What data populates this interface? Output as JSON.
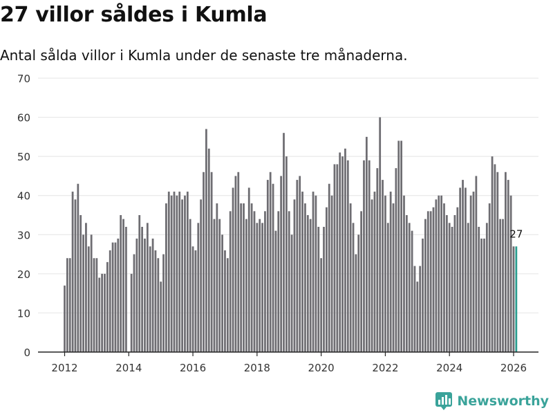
{
  "header": {
    "title": "27 villor såldes i Kumla",
    "subtitle": "Antal sålda villor i Kumla under de senaste tre månaderna."
  },
  "brand": {
    "name": "Newsworthy"
  },
  "colors": {
    "bar": "#6e6d72",
    "highlight": "#2a9d8f",
    "grid": "#e4e4e4",
    "axis": "#222222",
    "brand": "#3aa39a"
  },
  "chart_data": {
    "type": "bar",
    "title": "27 villor såldes i Kumla",
    "subtitle": "Antal sålda villor i Kumla under de senaste tre månaderna.",
    "xlabel": "",
    "ylabel": "",
    "ylim": [
      0,
      70
    ],
    "yticks": [
      0,
      10,
      20,
      30,
      40,
      50,
      60,
      70
    ],
    "xticks": [
      "2012",
      "2014",
      "2016",
      "2018",
      "2020",
      "2022",
      "2024",
      "2026"
    ],
    "start": {
      "year": 2012,
      "month": 1
    },
    "highlight_label": "27",
    "values": [
      17,
      24,
      24,
      41,
      39,
      43,
      35,
      30,
      33,
      27,
      30,
      24,
      24,
      19,
      20,
      20,
      23,
      26,
      28,
      28,
      29,
      35,
      34,
      32,
      0,
      20,
      25,
      29,
      35,
      32,
      29,
      33,
      27,
      29,
      26,
      24,
      18,
      25,
      38,
      41,
      40,
      41,
      40,
      41,
      39,
      40,
      41,
      34,
      27,
      26,
      33,
      39,
      46,
      57,
      52,
      46,
      34,
      38,
      34,
      30,
      26,
      24,
      36,
      42,
      45,
      46,
      38,
      38,
      34,
      42,
      38,
      36,
      33,
      34,
      33,
      36,
      44,
      46,
      43,
      31,
      36,
      45,
      56,
      50,
      36,
      30,
      39,
      44,
      45,
      41,
      38,
      35,
      34,
      41,
      40,
      32,
      24,
      32,
      37,
      43,
      40,
      48,
      48,
      51,
      50,
      52,
      49,
      38,
      33,
      25,
      30,
      36,
      49,
      55,
      49,
      39,
      41,
      47,
      60,
      44,
      40,
      33,
      41,
      38,
      47,
      54,
      54,
      40,
      35,
      33,
      31,
      22,
      18,
      22,
      29,
      34,
      36,
      36,
      37,
      39,
      40,
      40,
      38,
      35,
      33,
      32,
      35,
      37,
      42,
      44,
      42,
      33,
      40,
      41,
      45,
      32,
      29,
      29,
      33,
      38,
      50,
      48,
      46,
      34,
      34,
      46,
      44,
      40,
      27,
      27
    ]
  }
}
